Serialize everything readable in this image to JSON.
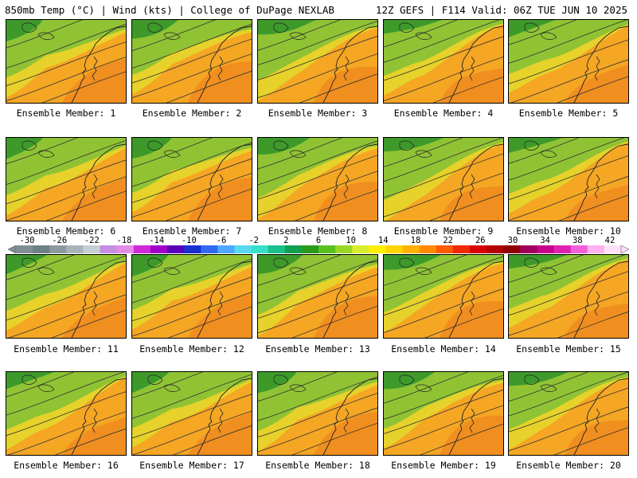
{
  "header": {
    "left": "850mb Temp (°C) | Wind (kts) | College of DuPage NEXLAB",
    "right": "12Z GEFS | F114 Valid: 06Z TUE JUN 10 2025"
  },
  "colorbar": {
    "labels": [
      "-30",
      "-26",
      "-22",
      "-18",
      "-14",
      "-10",
      "-6",
      "-2",
      "2",
      "6",
      "10",
      "14",
      "18",
      "22",
      "26",
      "30",
      "34",
      "38",
      "42"
    ],
    "colors": [
      "#7f8f95",
      "#6f7f86",
      "#8c9aa0",
      "#a8b4ba",
      "#c6cfd3",
      "#c48fe0",
      "#e58ce8",
      "#d02ad8",
      "#a000c8",
      "#5a00b8",
      "#1a2fd0",
      "#2f6af0",
      "#4fa8ff",
      "#5ad8f0",
      "#36e0c8",
      "#1ac08a",
      "#10a050",
      "#2a9a1a",
      "#5ac020",
      "#9ad626",
      "#d8ec2c",
      "#fff000",
      "#ffd400",
      "#ffb000",
      "#ff8a00",
      "#ff5a00",
      "#f02a00",
      "#d80000",
      "#b40000",
      "#900000",
      "#a0005a",
      "#c8008a",
      "#e020b0",
      "#f060d8",
      "#ffb0f0",
      "#ffe0fa"
    ]
  },
  "panels": [
    {
      "label": "Ensemble Member: 1",
      "warmth": 0.55
    },
    {
      "label": "Ensemble Member: 2",
      "warmth": 0.6
    },
    {
      "label": "Ensemble Member: 3",
      "warmth": 0.5
    },
    {
      "label": "Ensemble Member: 4",
      "warmth": 0.58
    },
    {
      "label": "Ensemble Member: 5",
      "warmth": 0.62
    },
    {
      "label": "Ensemble Member: 6",
      "warmth": 0.55
    },
    {
      "label": "Ensemble Member: 7",
      "warmth": 0.6
    },
    {
      "label": "Ensemble Member: 8",
      "warmth": 0.5
    },
    {
      "label": "Ensemble Member: 9",
      "warmth": 0.45
    },
    {
      "label": "Ensemble Member: 10",
      "warmth": 0.58
    },
    {
      "label": "Ensemble Member: 11",
      "warmth": 0.58
    },
    {
      "label": "Ensemble Member: 12",
      "warmth": 0.6
    },
    {
      "label": "Ensemble Member: 13",
      "warmth": 0.5
    },
    {
      "label": "Ensemble Member: 14",
      "warmth": 0.55
    },
    {
      "label": "Ensemble Member: 15",
      "warmth": 0.62
    },
    {
      "label": "Ensemble Member: 16",
      "warmth": 0.55
    },
    {
      "label": "Ensemble Member: 17",
      "warmth": 0.58
    },
    {
      "label": "Ensemble Member: 18",
      "warmth": 0.52
    },
    {
      "label": "Ensemble Member: 19",
      "warmth": 0.56
    },
    {
      "label": "Ensemble Member: 20",
      "warmth": 0.55
    }
  ]
}
